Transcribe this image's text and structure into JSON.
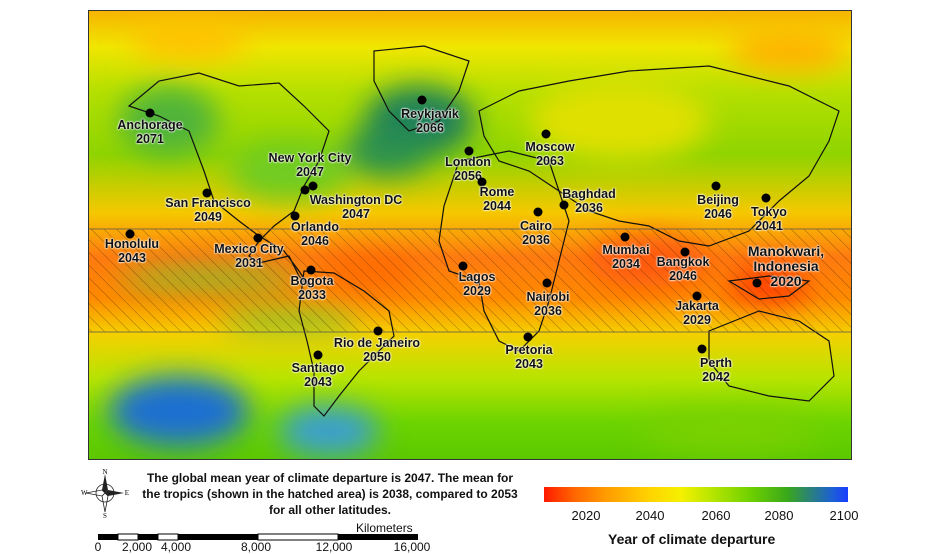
{
  "map": {
    "cities": [
      {
        "name": "Anchorage",
        "year": "2071"
      },
      {
        "name": "Reykjavik",
        "year": "2066"
      },
      {
        "name": "New York City",
        "year": "2047"
      },
      {
        "name": "Washington DC",
        "year": "2047"
      },
      {
        "name": "San Francisco",
        "year": "2049"
      },
      {
        "name": "Honolulu",
        "year": "2043"
      },
      {
        "name": "Mexico City",
        "year": "2031"
      },
      {
        "name": "Orlando",
        "year": "2046"
      },
      {
        "name": "Bogota",
        "year": "2033"
      },
      {
        "name": "London",
        "year": "2056"
      },
      {
        "name": "Moscow",
        "year": "2063"
      },
      {
        "name": "Rome",
        "year": "2044"
      },
      {
        "name": "Cairo",
        "year": "2036"
      },
      {
        "name": "Baghdad",
        "year": "2036"
      },
      {
        "name": "Beijing",
        "year": "2046"
      },
      {
        "name": "Tokyo",
        "year": "2041"
      },
      {
        "name": "Mumbai",
        "year": "2034"
      },
      {
        "name": "Bangkok",
        "year": "2046"
      },
      {
        "name": "Manokwari, Indonesia",
        "year": "2020"
      },
      {
        "name": "Lagos",
        "year": "2029"
      },
      {
        "name": "Nairobi",
        "year": "2036"
      },
      {
        "name": "Jakarta",
        "year": "2029"
      },
      {
        "name": "Pretoria",
        "year": "2043"
      },
      {
        "name": "Rio de Janeiro",
        "year": "2050"
      },
      {
        "name": "Santiago",
        "year": "2043"
      },
      {
        "name": "Perth",
        "year": "2042"
      }
    ]
  },
  "caption": "The global mean year of climate departure is 2047. The mean for the tropics (shown in the hatched area) is 2038, compared to 2053 for all other latitudes.",
  "compass": {
    "n": "N",
    "s": "S",
    "e": "E",
    "w": "W"
  },
  "scale": {
    "unit": "Kilometers",
    "ticks": [
      "0",
      "2,000",
      "4,000",
      "8,000",
      "12,000",
      "16,000"
    ]
  },
  "legend": {
    "title": "Year of climate departure",
    "ticks": [
      "2020",
      "2040",
      "2060",
      "2080",
      "2100"
    ],
    "colors": {
      "early": "#ff1a00",
      "mid": "#f5f000",
      "late": "#1a3cff"
    }
  }
}
